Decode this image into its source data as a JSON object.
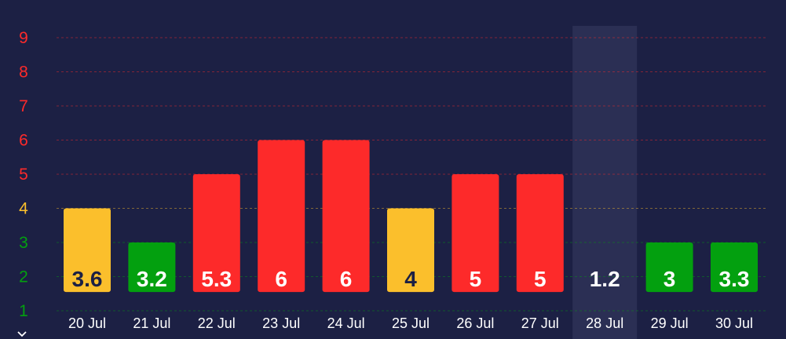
{
  "chart_data": {
    "type": "bar",
    "title": "",
    "xlabel": "",
    "ylabel": "",
    "categories": [
      "20 Jul",
      "21 Jul",
      "22 Jul",
      "23 Jul",
      "24 Jul",
      "25 Jul",
      "26 Jul",
      "27 Jul",
      "28 Jul",
      "29 Jul",
      "30 Jul"
    ],
    "values": [
      3.6,
      3.2,
      5.3,
      6,
      6,
      4,
      5,
      5,
      1.2,
      3,
      3.3
    ],
    "bar_labels": [
      "3.6",
      "3.2",
      "5.3",
      "6",
      "6",
      "4",
      "5",
      "5",
      "1.2",
      "3",
      "3.3"
    ],
    "bar_levels": [
      4,
      3,
      5,
      6,
      6,
      4,
      5,
      5,
      1.3,
      3,
      3
    ],
    "bar_colors": [
      "#fbbf2c",
      "#03a00f",
      "#fd2a2a",
      "#fd2a2a",
      "#fd2a2a",
      "#fbbf2c",
      "#fd2a2a",
      "#fd2a2a",
      "#03a00f",
      "#03a00f",
      "#03a00f"
    ],
    "label_colors": [
      "#1c2044",
      "#ffffff",
      "#ffffff",
      "#ffffff",
      "#ffffff",
      "#1c2044",
      "#ffffff",
      "#ffffff",
      "#ffffff",
      "#ffffff",
      "#ffffff"
    ],
    "ylim": [
      1,
      9
    ],
    "yticks": [
      {
        "value": 1,
        "label": "1",
        "color": "#03a00f"
      },
      {
        "value": 2,
        "label": "2",
        "color": "#03a00f"
      },
      {
        "value": 3,
        "label": "3",
        "color": "#03a00f"
      },
      {
        "value": 4,
        "label": "4",
        "color": "#fbbf2c"
      },
      {
        "value": 5,
        "label": "5",
        "color": "#fd2a2a"
      },
      {
        "value": 6,
        "label": "6",
        "color": "#fd2a2a"
      },
      {
        "value": 7,
        "label": "7",
        "color": "#fd2a2a"
      },
      {
        "value": 8,
        "label": "8",
        "color": "#fd2a2a"
      },
      {
        "value": 9,
        "label": "9",
        "color": "#fd2a2a"
      }
    ],
    "grid": true,
    "grid_style": "dashed",
    "highlighted_category": "28 Jul",
    "legend": "none"
  },
  "colors": {
    "background": "#1c2044",
    "highlight": "#2b2f54",
    "grid": "#7a4a52",
    "x_label": "#ffffff",
    "chevron": "#ffffff"
  },
  "icons": {
    "scroll": "chevron-down-icon"
  }
}
